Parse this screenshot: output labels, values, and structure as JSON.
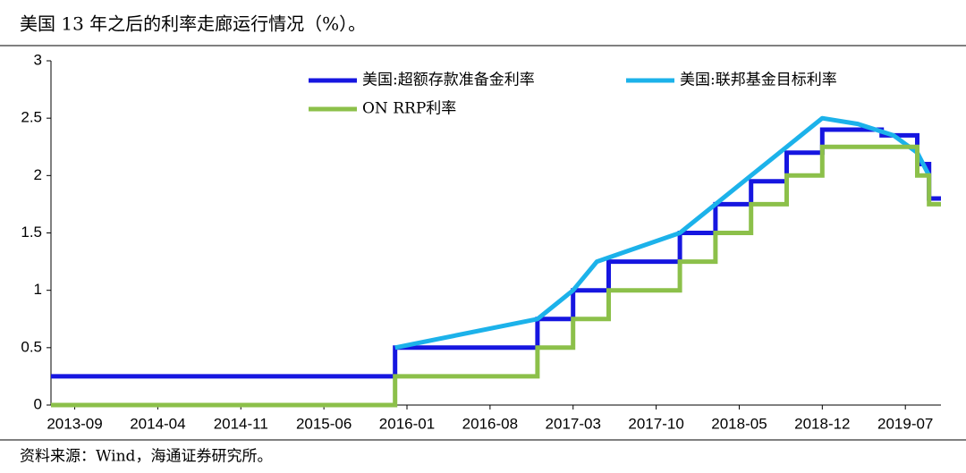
{
  "chart_data": {
    "type": "line",
    "title": "美国 13 年之后的利率走廊运行情况（%）。",
    "source": "资料来源：Wind，海通证券研究所。",
    "xlim": [
      "2013-07",
      "2019-10"
    ],
    "xticks": [
      "2013-09",
      "2014-04",
      "2014-11",
      "2015-06",
      "2016-01",
      "2016-08",
      "2017-03",
      "2017-10",
      "2018-05",
      "2018-12",
      "2019-07"
    ],
    "ylim": [
      0,
      3
    ],
    "yticks": [
      0,
      0.5,
      1,
      1.5,
      2,
      2.5,
      3
    ],
    "series": [
      {
        "name": "美国:超额存款准备金利率",
        "color": "#1616e0",
        "x": [
          "2013-07",
          "2015-12",
          "2015-12",
          "2016-12",
          "2016-12",
          "2017-03",
          "2017-03",
          "2017-06",
          "2017-06",
          "2017-12",
          "2017-12",
          "2018-03",
          "2018-03",
          "2018-06",
          "2018-06",
          "2018-09",
          "2018-09",
          "2018-12",
          "2018-12",
          "2019-05",
          "2019-05",
          "2019-08",
          "2019-08",
          "2019-09",
          "2019-09",
          "2019-10"
        ],
        "values": [
          0.25,
          0.25,
          0.5,
          0.5,
          0.75,
          0.75,
          1,
          1,
          1.25,
          1.25,
          1.5,
          1.5,
          1.75,
          1.75,
          1.95,
          1.95,
          2.2,
          2.2,
          2.4,
          2.4,
          2.35,
          2.35,
          2.1,
          2.1,
          1.8,
          1.8
        ]
      },
      {
        "name": "美国:联邦基金目标利率",
        "color": "#1cb2ea",
        "x": [
          "2015-12",
          "2016-12",
          "2017-03",
          "2017-05",
          "2017-12",
          "2018-03",
          "2018-06",
          "2018-09",
          "2018-12",
          "2019-03",
          "2019-06",
          "2019-08",
          "2019-09"
        ],
        "values": [
          0.5,
          0.75,
          1,
          1.25,
          1.5,
          1.75,
          2,
          2.25,
          2.5,
          2.45,
          2.35,
          2.2,
          2
        ]
      },
      {
        "name": "ON RRP利率",
        "color": "#8cc04a",
        "x": [
          "2013-07",
          "2015-12",
          "2015-12",
          "2016-12",
          "2016-12",
          "2017-03",
          "2017-03",
          "2017-06",
          "2017-06",
          "2017-12",
          "2017-12",
          "2018-03",
          "2018-03",
          "2018-06",
          "2018-06",
          "2018-09",
          "2018-09",
          "2018-12",
          "2018-12",
          "2019-08",
          "2019-08",
          "2019-09",
          "2019-09",
          "2019-10"
        ],
        "values": [
          0,
          0,
          0.25,
          0.25,
          0.5,
          0.5,
          0.75,
          0.75,
          1,
          1,
          1.25,
          1.25,
          1.5,
          1.5,
          1.75,
          1.75,
          2,
          2,
          2.25,
          2.25,
          2,
          2,
          1.75,
          1.75
        ]
      }
    ]
  }
}
